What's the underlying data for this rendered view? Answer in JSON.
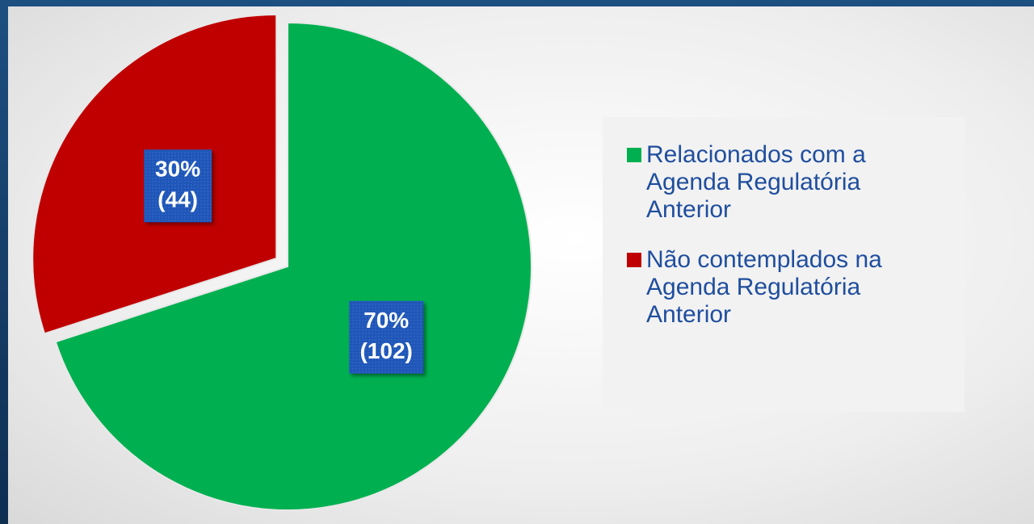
{
  "chart_data": {
    "type": "pie",
    "series": [
      {
        "name": "Relacionados com a Agenda Regulatória Anterior",
        "color": "#00b050"
      },
      {
        "name": "Não contemplados na Agenda Regulatória Anterior",
        "color": "#c00000"
      }
    ],
    "values": [
      70,
      30
    ],
    "value_labels": [
      "70%",
      "30%"
    ],
    "counts": [
      102,
      44
    ],
    "count_labels": [
      "(102)",
      "(44)"
    ],
    "legend": "right"
  }
}
